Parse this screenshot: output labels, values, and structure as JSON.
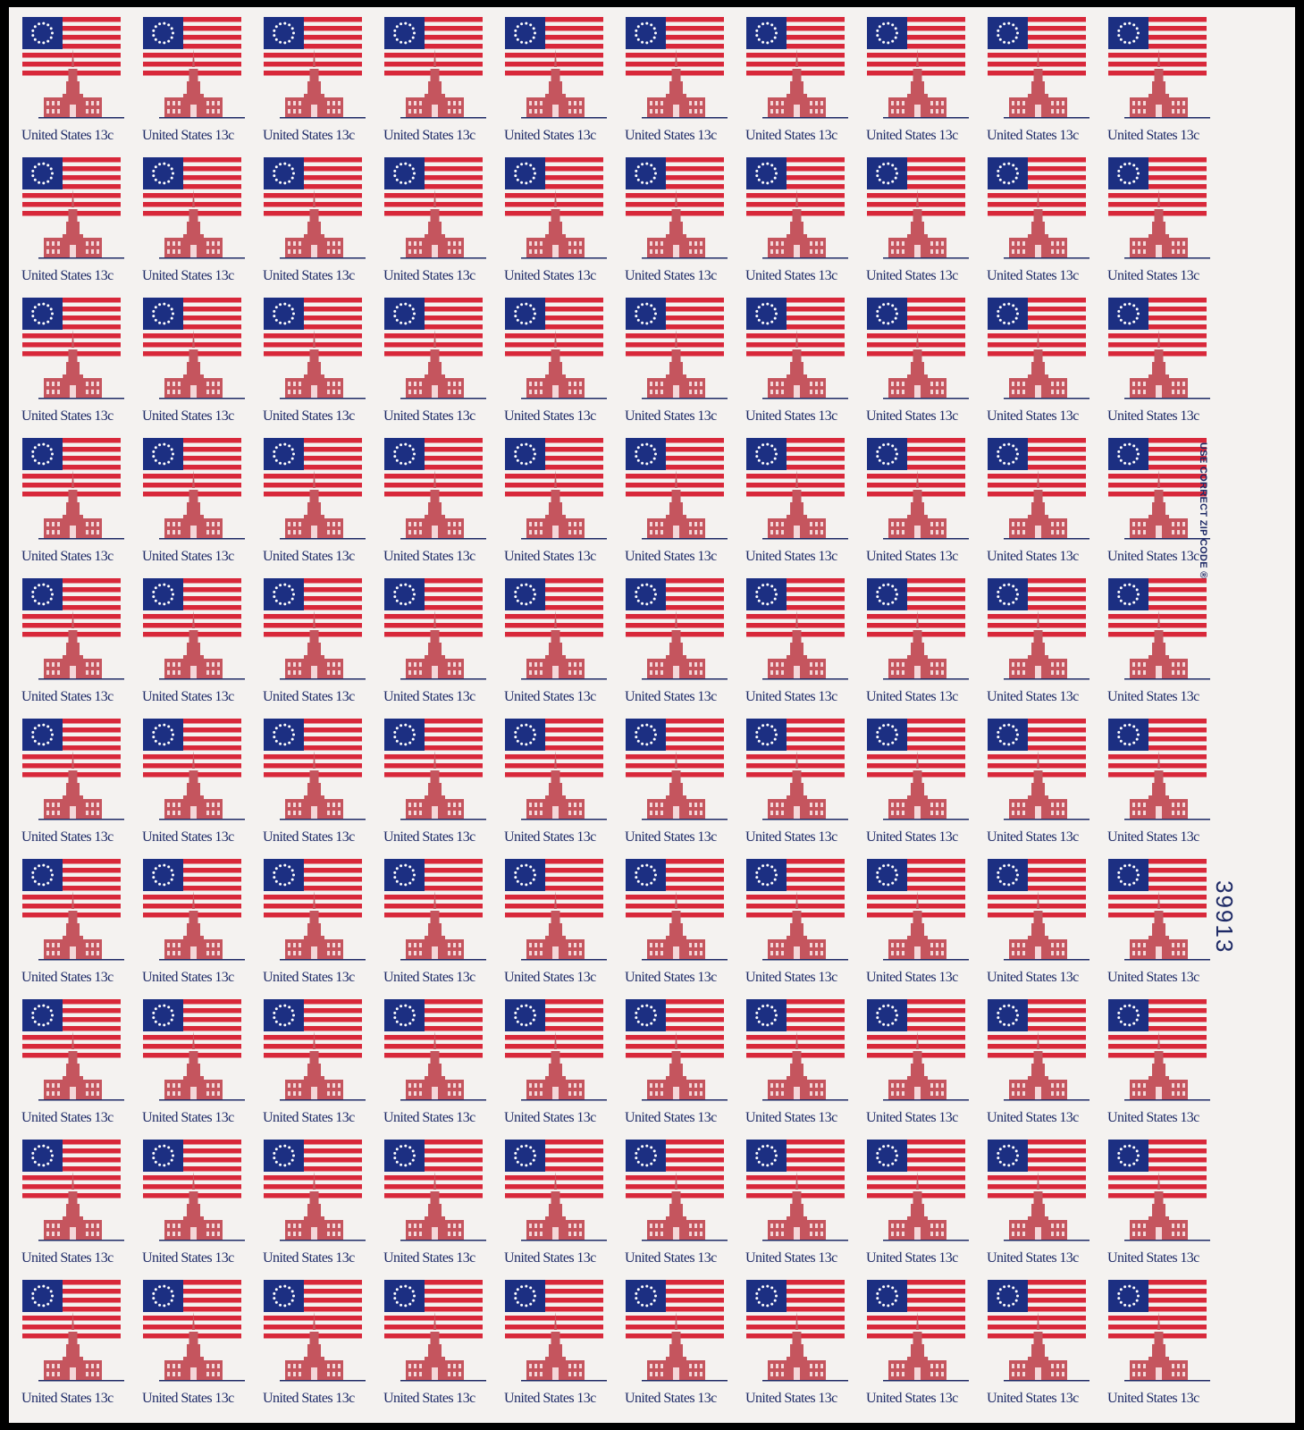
{
  "sheet": {
    "rows": 10,
    "columns": 10,
    "stamp_legend": "United States 13c",
    "margin_inscription": "USE CORRECT ZIP CODE ®",
    "plate_number": "39913"
  },
  "colors": {
    "stripe_red": "#d8283a",
    "canton_blue": "#1c2f82",
    "hall_rose": "#c5555e",
    "ink_blue": "#1e2a66",
    "paper": "#f4f2f0"
  }
}
